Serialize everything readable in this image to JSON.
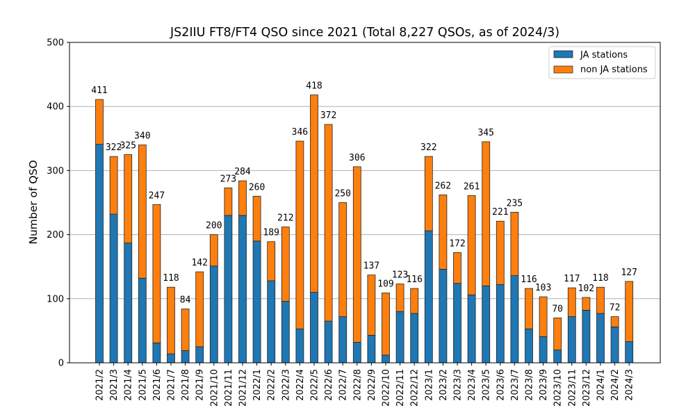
{
  "chart_data": {
    "type": "bar",
    "stacked": true,
    "title": "JS2IIU FT8/FT4 QSO since 2021 (Total 8,227 QSOs, as of 2024/3)",
    "xlabel": "",
    "ylabel": "Number of QSO",
    "ylim": [
      0,
      500
    ],
    "yticks": [
      0,
      100,
      200,
      300,
      400,
      500
    ],
    "grid": "y",
    "legend_position": "top-right",
    "categories": [
      "2021/2",
      "2021/3",
      "2021/4",
      "2021/5",
      "2021/6",
      "2021/7",
      "2021/8",
      "2021/9",
      "2021/10",
      "2021/11",
      "2021/12",
      "2022/1",
      "2022/2",
      "2022/3",
      "2022/4",
      "2022/5",
      "2022/6",
      "2022/7",
      "2022/8",
      "2022/9",
      "2022/10",
      "2022/11",
      "2022/12",
      "2023/1",
      "2023/2",
      "2023/3",
      "2023/4",
      "2023/5",
      "2023/6",
      "2023/7",
      "2023/8",
      "2023/9",
      "2023/10",
      "2023/11",
      "2023/12",
      "2024/1",
      "2024/2",
      "2024/3"
    ],
    "totals": [
      411,
      322,
      325,
      340,
      247,
      118,
      84,
      142,
      200,
      273,
      284,
      260,
      189,
      212,
      346,
      418,
      372,
      250,
      306,
      137,
      109,
      123,
      116,
      322,
      262,
      172,
      261,
      345,
      221,
      235,
      116,
      103,
      70,
      117,
      102,
      118,
      72,
      127
    ],
    "series": [
      {
        "name": "JA stations",
        "color": "#1f77b4",
        "values": [
          341,
          232,
          187,
          132,
          31,
          14,
          19,
          25,
          151,
          230,
          230,
          190,
          128,
          96,
          53,
          110,
          65,
          72,
          32,
          43,
          12,
          80,
          77,
          206,
          146,
          124,
          106,
          120,
          122,
          136,
          53,
          41,
          20,
          72,
          82,
          77,
          56,
          33
        ]
      },
      {
        "name": "non JA stations",
        "color": "#ff7f0e",
        "values": [
          70,
          90,
          138,
          208,
          216,
          104,
          65,
          117,
          49,
          43,
          54,
          70,
          61,
          116,
          293,
          308,
          307,
          178,
          274,
          94,
          97,
          43,
          39,
          116,
          116,
          48,
          155,
          225,
          99,
          99,
          63,
          62,
          50,
          45,
          20,
          41,
          16,
          94
        ]
      }
    ]
  }
}
